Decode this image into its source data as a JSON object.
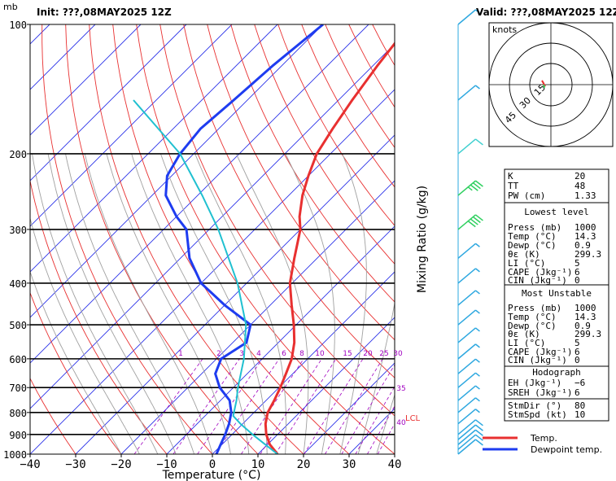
{
  "header": {
    "init_label": "Init: ???,08MAY2025  12Z",
    "valid_label": "Valid: ???,08MAY2025  12Z",
    "pressure_unit": "mb"
  },
  "chart_data": {
    "type": "line",
    "title": "",
    "xlabel": "Temperature (°C)",
    "ylabel": "Mixing Ratio (g/kg)",
    "x_ticks": [
      -40,
      -30,
      -20,
      -10,
      0,
      10,
      20,
      30,
      40
    ],
    "y_ticks": [
      100,
      200,
      300,
      400,
      500,
      600,
      700,
      800,
      900,
      1000
    ],
    "xlim": [
      -40,
      40
    ],
    "ylim": [
      1000,
      100
    ],
    "y_scale": "log",
    "grid": true,
    "mixing_ratio_labels": [
      "1",
      "2",
      "3",
      "4",
      "6",
      "8",
      "10",
      "15",
      "20",
      "25",
      "30",
      "35",
      "40"
    ],
    "lcl_label": "LCL",
    "series": [
      {
        "name": "Temp.",
        "color": "#e83030",
        "points": [
          [
            1000,
            14.3
          ],
          [
            950,
            10.5
          ],
          [
            900,
            7.5
          ],
          [
            850,
            5.0
          ],
          [
            800,
            3.0
          ],
          [
            750,
            1.8
          ],
          [
            700,
            0.3
          ],
          [
            650,
            -1.5
          ],
          [
            600,
            -3.5
          ],
          [
            550,
            -6.5
          ],
          [
            500,
            -10.5
          ],
          [
            450,
            -15.3
          ],
          [
            400,
            -20.5
          ],
          [
            350,
            -25
          ],
          [
            300,
            -30
          ],
          [
            280,
            -33
          ],
          [
            250,
            -37
          ],
          [
            225,
            -40
          ],
          [
            200,
            -43
          ],
          [
            175,
            -45
          ],
          [
            150,
            -47
          ],
          [
            125,
            -49
          ],
          [
            100,
            -51
          ]
        ]
      },
      {
        "name": "Dewpoint temp.",
        "color": "#1e3cf0",
        "points": [
          [
            1000,
            0.9
          ],
          [
            950,
            -0.3
          ],
          [
            900,
            -1.5
          ],
          [
            850,
            -3
          ],
          [
            800,
            -5
          ],
          [
            750,
            -8
          ],
          [
            700,
            -13
          ],
          [
            650,
            -17
          ],
          [
            600,
            -19
          ],
          [
            550,
            -17
          ],
          [
            500,
            -20
          ],
          [
            450,
            -30
          ],
          [
            400,
            -40
          ],
          [
            350,
            -48
          ],
          [
            300,
            -55
          ],
          [
            280,
            -60
          ],
          [
            250,
            -67
          ],
          [
            225,
            -71
          ],
          [
            200,
            -73
          ],
          [
            175,
            -74
          ],
          [
            150,
            -73
          ],
          [
            125,
            -72
          ],
          [
            100,
            -70
          ]
        ]
      },
      {
        "name": "Parcel",
        "color": "#20c0d0",
        "points": [
          [
            1000,
            14.3
          ],
          [
            950,
            9.5
          ],
          [
            900,
            4.5
          ],
          [
            850,
            -0.5
          ],
          [
            815,
            -3.8
          ],
          [
            750,
            -6.5
          ],
          [
            700,
            -9
          ],
          [
            600,
            -14
          ],
          [
            500,
            -21
          ],
          [
            400,
            -32
          ],
          [
            300,
            -48
          ],
          [
            250,
            -59
          ],
          [
            200,
            -73
          ],
          [
            150,
            -95
          ]
        ]
      }
    ],
    "wind_barbs": [
      {
        "p": 1000,
        "speed_kt": 10
      },
      {
        "p": 975,
        "speed_kt": 10
      },
      {
        "p": 950,
        "speed_kt": 10
      },
      {
        "p": 925,
        "speed_kt": 10
      },
      {
        "p": 900,
        "speed_kt": 10
      },
      {
        "p": 850,
        "speed_kt": 5
      },
      {
        "p": 800,
        "speed_kt": 5
      },
      {
        "p": 750,
        "speed_kt": 5
      },
      {
        "p": 700,
        "speed_kt": 5
      },
      {
        "p": 650,
        "speed_kt": 5
      },
      {
        "p": 600,
        "speed_kt": 5
      },
      {
        "p": 550,
        "speed_kt": 5
      },
      {
        "p": 500,
        "speed_kt": 5
      },
      {
        "p": 450,
        "speed_kt": 5
      },
      {
        "p": 400,
        "speed_kt": 5
      },
      {
        "p": 350,
        "speed_kt": 5
      },
      {
        "p": 300,
        "speed_kt": 40
      },
      {
        "p": 250,
        "speed_kt": 35
      },
      {
        "p": 200,
        "speed_kt": 10
      },
      {
        "p": 150,
        "speed_kt": 5
      },
      {
        "p": 100,
        "speed_kt": 5
      }
    ],
    "hodograph": {
      "unit_label": "knots",
      "ring_labels": [
        "15",
        "30",
        "45"
      ]
    }
  },
  "indices": {
    "rows": [
      {
        "label": "K",
        "value": "20"
      },
      {
        "label": "TT",
        "value": "48"
      },
      {
        "label": "PW (cm)",
        "value": "1.33"
      }
    ],
    "lowest_level": {
      "title": "Lowest level",
      "rows": [
        {
          "label": "Press (mb)",
          "value": "1000"
        },
        {
          "label": "Temp (°C)",
          "value": "14.3"
        },
        {
          "label": "Dewp (°C)",
          "value": "0.9"
        },
        {
          "label": "θε (K)",
          "value": "299.3"
        },
        {
          "label": "LI (°C)",
          "value": "5"
        },
        {
          "label": "CAPE (Jkg⁻¹)",
          "value": "6"
        },
        {
          "label": "CIN (Jkg⁻¹)",
          "value": "0"
        }
      ]
    },
    "most_unstable": {
      "title": "Most Unstable",
      "rows": [
        {
          "label": "Press (mb)",
          "value": "1000"
        },
        {
          "label": "Temp (°C)",
          "value": "14.3"
        },
        {
          "label": "Dewp (°C)",
          "value": "0.9"
        },
        {
          "label": "θε (K)",
          "value": "299.3"
        },
        {
          "label": "LI (°C)",
          "value": "5"
        },
        {
          "label": "CAPE (Jkg⁻¹)",
          "value": "6"
        },
        {
          "label": "CIN (Jkg⁻¹)",
          "value": "0"
        }
      ]
    },
    "hodograph": {
      "title": "Hodograph",
      "rows": [
        {
          "label": "EH (Jkg⁻¹)",
          "value": "−6"
        },
        {
          "label": "SREH (Jkg⁻¹)",
          "value": "6"
        }
      ]
    },
    "storm": {
      "rows": [
        {
          "label": "StmDir (°)",
          "value": "80"
        },
        {
          "label": "StmSpd (kt)",
          "value": "10"
        }
      ]
    }
  },
  "legend": {
    "temp_label": "Temp.",
    "temp_color": "#e83030",
    "dew_label": "Dewpoint temp.",
    "dew_color": "#1e3cf0"
  }
}
